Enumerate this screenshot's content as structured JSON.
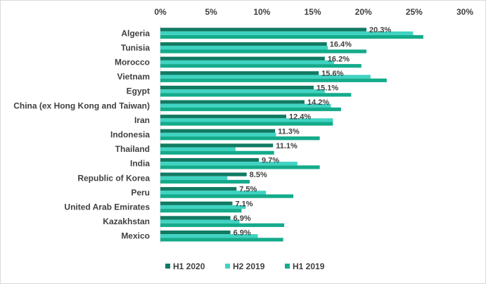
{
  "chart_data": {
    "type": "bar",
    "orientation": "horizontal",
    "title": "",
    "xlabel": "",
    "ylabel": "",
    "xlim": [
      0,
      0.3
    ],
    "x_ticks": [
      "0%",
      "5%",
      "10%",
      "15%",
      "20%",
      "25%",
      "30%"
    ],
    "x_tick_values": [
      0,
      0.05,
      0.1,
      0.15,
      0.2,
      0.25,
      0.3
    ],
    "grid": false,
    "legend_position": "bottom",
    "categories": [
      "Algeria",
      "Tunisia",
      "Morocco",
      "Vietnam",
      "Egypt",
      "China (ex Hong Kong and Taiwan)",
      "Iran",
      "Indonesia",
      "Thailand",
      "India",
      "Republic of Korea",
      "Peru",
      "United Arab Emirates",
      "Kazakhstan",
      "Mexico"
    ],
    "series": [
      {
        "name": "H1 2020",
        "color": "#117a62",
        "values": [
          0.203,
          0.164,
          0.162,
          0.156,
          0.151,
          0.142,
          0.124,
          0.113,
          0.111,
          0.097,
          0.085,
          0.075,
          0.071,
          0.069,
          0.069
        ],
        "labels": [
          "20.3%",
          "16.4%",
          "16.2%",
          "15.6%",
          "15.1%",
          "14.2%",
          "12.4%",
          "11.3%",
          "11.1%",
          "9.7%",
          "8.5%",
          "7.5%",
          "7.1%",
          "6.9%",
          "6.9%"
        ]
      },
      {
        "name": "H2 2019",
        "color": "#3fd3c2",
        "values": [
          0.249,
          0.165,
          0.171,
          0.207,
          0.162,
          0.168,
          0.17,
          0.114,
          0.074,
          0.135,
          0.066,
          0.104,
          0.084,
          0.078,
          0.096
        ]
      },
      {
        "name": "H1 2019",
        "color": "#14ab8b",
        "values": [
          0.259,
          0.203,
          0.198,
          0.223,
          0.188,
          0.178,
          0.17,
          0.157,
          0.112,
          0.157,
          0.088,
          0.131,
          0.08,
          0.122,
          0.121
        ]
      }
    ]
  }
}
